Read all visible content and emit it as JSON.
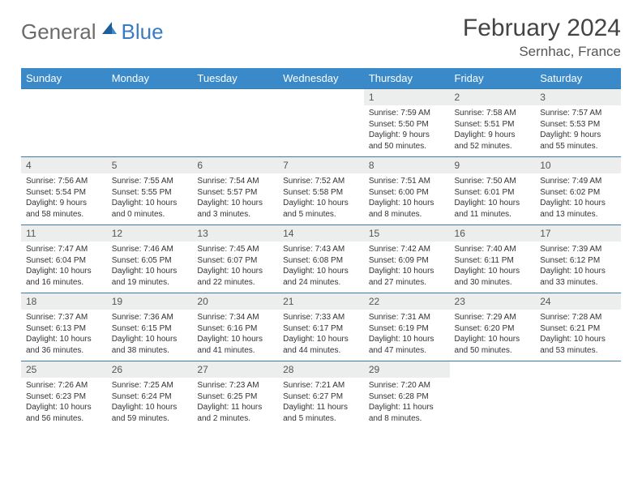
{
  "brand": {
    "general": "General",
    "blue": "Blue"
  },
  "title": "February 2024",
  "location": "Sernhac, France",
  "daynames": [
    "Sunday",
    "Monday",
    "Tuesday",
    "Wednesday",
    "Thursday",
    "Friday",
    "Saturday"
  ],
  "colors": {
    "header_bg": "#3a8ac9",
    "row_border": "#3a7ba8",
    "daynum_bg": "#eceded",
    "logo_gray": "#6b6b6b",
    "logo_blue": "#3a7cc4"
  },
  "weeks": [
    [
      null,
      null,
      null,
      null,
      {
        "num": "1",
        "sunrise": "Sunrise: 7:59 AM",
        "sunset": "Sunset: 5:50 PM",
        "daylight": "Daylight: 9 hours and 50 minutes."
      },
      {
        "num": "2",
        "sunrise": "Sunrise: 7:58 AM",
        "sunset": "Sunset: 5:51 PM",
        "daylight": "Daylight: 9 hours and 52 minutes."
      },
      {
        "num": "3",
        "sunrise": "Sunrise: 7:57 AM",
        "sunset": "Sunset: 5:53 PM",
        "daylight": "Daylight: 9 hours and 55 minutes."
      }
    ],
    [
      {
        "num": "4",
        "sunrise": "Sunrise: 7:56 AM",
        "sunset": "Sunset: 5:54 PM",
        "daylight": "Daylight: 9 hours and 58 minutes."
      },
      {
        "num": "5",
        "sunrise": "Sunrise: 7:55 AM",
        "sunset": "Sunset: 5:55 PM",
        "daylight": "Daylight: 10 hours and 0 minutes."
      },
      {
        "num": "6",
        "sunrise": "Sunrise: 7:54 AM",
        "sunset": "Sunset: 5:57 PM",
        "daylight": "Daylight: 10 hours and 3 minutes."
      },
      {
        "num": "7",
        "sunrise": "Sunrise: 7:52 AM",
        "sunset": "Sunset: 5:58 PM",
        "daylight": "Daylight: 10 hours and 5 minutes."
      },
      {
        "num": "8",
        "sunrise": "Sunrise: 7:51 AM",
        "sunset": "Sunset: 6:00 PM",
        "daylight": "Daylight: 10 hours and 8 minutes."
      },
      {
        "num": "9",
        "sunrise": "Sunrise: 7:50 AM",
        "sunset": "Sunset: 6:01 PM",
        "daylight": "Daylight: 10 hours and 11 minutes."
      },
      {
        "num": "10",
        "sunrise": "Sunrise: 7:49 AM",
        "sunset": "Sunset: 6:02 PM",
        "daylight": "Daylight: 10 hours and 13 minutes."
      }
    ],
    [
      {
        "num": "11",
        "sunrise": "Sunrise: 7:47 AM",
        "sunset": "Sunset: 6:04 PM",
        "daylight": "Daylight: 10 hours and 16 minutes."
      },
      {
        "num": "12",
        "sunrise": "Sunrise: 7:46 AM",
        "sunset": "Sunset: 6:05 PM",
        "daylight": "Daylight: 10 hours and 19 minutes."
      },
      {
        "num": "13",
        "sunrise": "Sunrise: 7:45 AM",
        "sunset": "Sunset: 6:07 PM",
        "daylight": "Daylight: 10 hours and 22 minutes."
      },
      {
        "num": "14",
        "sunrise": "Sunrise: 7:43 AM",
        "sunset": "Sunset: 6:08 PM",
        "daylight": "Daylight: 10 hours and 24 minutes."
      },
      {
        "num": "15",
        "sunrise": "Sunrise: 7:42 AM",
        "sunset": "Sunset: 6:09 PM",
        "daylight": "Daylight: 10 hours and 27 minutes."
      },
      {
        "num": "16",
        "sunrise": "Sunrise: 7:40 AM",
        "sunset": "Sunset: 6:11 PM",
        "daylight": "Daylight: 10 hours and 30 minutes."
      },
      {
        "num": "17",
        "sunrise": "Sunrise: 7:39 AM",
        "sunset": "Sunset: 6:12 PM",
        "daylight": "Daylight: 10 hours and 33 minutes."
      }
    ],
    [
      {
        "num": "18",
        "sunrise": "Sunrise: 7:37 AM",
        "sunset": "Sunset: 6:13 PM",
        "daylight": "Daylight: 10 hours and 36 minutes."
      },
      {
        "num": "19",
        "sunrise": "Sunrise: 7:36 AM",
        "sunset": "Sunset: 6:15 PM",
        "daylight": "Daylight: 10 hours and 38 minutes."
      },
      {
        "num": "20",
        "sunrise": "Sunrise: 7:34 AM",
        "sunset": "Sunset: 6:16 PM",
        "daylight": "Daylight: 10 hours and 41 minutes."
      },
      {
        "num": "21",
        "sunrise": "Sunrise: 7:33 AM",
        "sunset": "Sunset: 6:17 PM",
        "daylight": "Daylight: 10 hours and 44 minutes."
      },
      {
        "num": "22",
        "sunrise": "Sunrise: 7:31 AM",
        "sunset": "Sunset: 6:19 PM",
        "daylight": "Daylight: 10 hours and 47 minutes."
      },
      {
        "num": "23",
        "sunrise": "Sunrise: 7:29 AM",
        "sunset": "Sunset: 6:20 PM",
        "daylight": "Daylight: 10 hours and 50 minutes."
      },
      {
        "num": "24",
        "sunrise": "Sunrise: 7:28 AM",
        "sunset": "Sunset: 6:21 PM",
        "daylight": "Daylight: 10 hours and 53 minutes."
      }
    ],
    [
      {
        "num": "25",
        "sunrise": "Sunrise: 7:26 AM",
        "sunset": "Sunset: 6:23 PM",
        "daylight": "Daylight: 10 hours and 56 minutes."
      },
      {
        "num": "26",
        "sunrise": "Sunrise: 7:25 AM",
        "sunset": "Sunset: 6:24 PM",
        "daylight": "Daylight: 10 hours and 59 minutes."
      },
      {
        "num": "27",
        "sunrise": "Sunrise: 7:23 AM",
        "sunset": "Sunset: 6:25 PM",
        "daylight": "Daylight: 11 hours and 2 minutes."
      },
      {
        "num": "28",
        "sunrise": "Sunrise: 7:21 AM",
        "sunset": "Sunset: 6:27 PM",
        "daylight": "Daylight: 11 hours and 5 minutes."
      },
      {
        "num": "29",
        "sunrise": "Sunrise: 7:20 AM",
        "sunset": "Sunset: 6:28 PM",
        "daylight": "Daylight: 11 hours and 8 minutes."
      },
      null,
      null
    ]
  ]
}
